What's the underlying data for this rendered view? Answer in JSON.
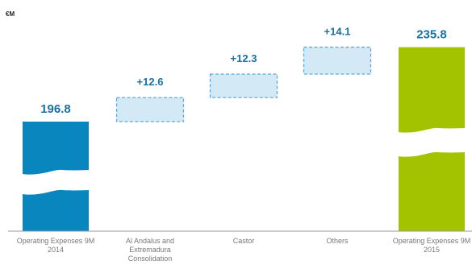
{
  "chart_data": {
    "type": "bar",
    "subtype": "waterfall",
    "unit": "€M",
    "categories": [
      [
        "Operating Expenses 9M",
        "2014"
      ],
      [
        "Al Andalus and",
        "Extremadura",
        "Consolidation"
      ],
      [
        "Castor"
      ],
      [
        "Others"
      ],
      [
        "Operating Expenses 9M",
        "2015"
      ]
    ],
    "series": [
      {
        "kind": "total",
        "value": 196.8,
        "label": "196.8"
      },
      {
        "kind": "delta",
        "value": 12.6,
        "label": "+12.6"
      },
      {
        "kind": "delta",
        "value": 12.3,
        "label": "+12.3"
      },
      {
        "kind": "delta",
        "value": 14.1,
        "label": "+14.1"
      },
      {
        "kind": "total",
        "value": 235.8,
        "label": "235.8"
      }
    ],
    "axis_break": true,
    "colors": {
      "start_total": "#0a86bf",
      "end_total": "#a3c200",
      "delta_fill": "#d3e9f6",
      "delta_border": "#5faad6",
      "value_labels": "#1a6fa3",
      "category_labels": "#777777",
      "axis": "#999999"
    }
  }
}
